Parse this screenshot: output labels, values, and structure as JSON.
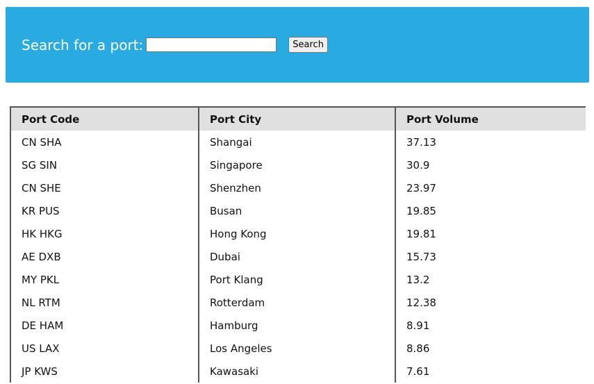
{
  "search": {
    "label": "Search for a port:",
    "value": "",
    "placeholder": "",
    "button_label": "Search"
  },
  "table": {
    "headers": [
      "Port Code",
      "Port City",
      "Port Volume"
    ],
    "rows": [
      [
        "CN SHA",
        "Shangai",
        "37.13"
      ],
      [
        "SG SIN",
        "Singapore",
        "30.9"
      ],
      [
        "CN SHE",
        "Shenzhen",
        "23.97"
      ],
      [
        "KR PUS",
        "Busan",
        "19.85"
      ],
      [
        "HK HKG",
        "Hong Kong",
        "19.81"
      ],
      [
        "AE DXB",
        "Dubai",
        "15.73"
      ],
      [
        "MY PKL",
        "Port Klang",
        "13.2"
      ],
      [
        "NL RTM",
        "Rotterdam",
        "12.38"
      ],
      [
        "DE HAM",
        "Hamburg",
        "8.91"
      ],
      [
        "US LAX",
        "Los Angeles",
        "8.86"
      ],
      [
        "JP KWS",
        "Kawasaki",
        "7.61"
      ]
    ]
  },
  "colors": {
    "header_bg": "#29abe2",
    "table_header_bg": "#e0e0e0"
  }
}
